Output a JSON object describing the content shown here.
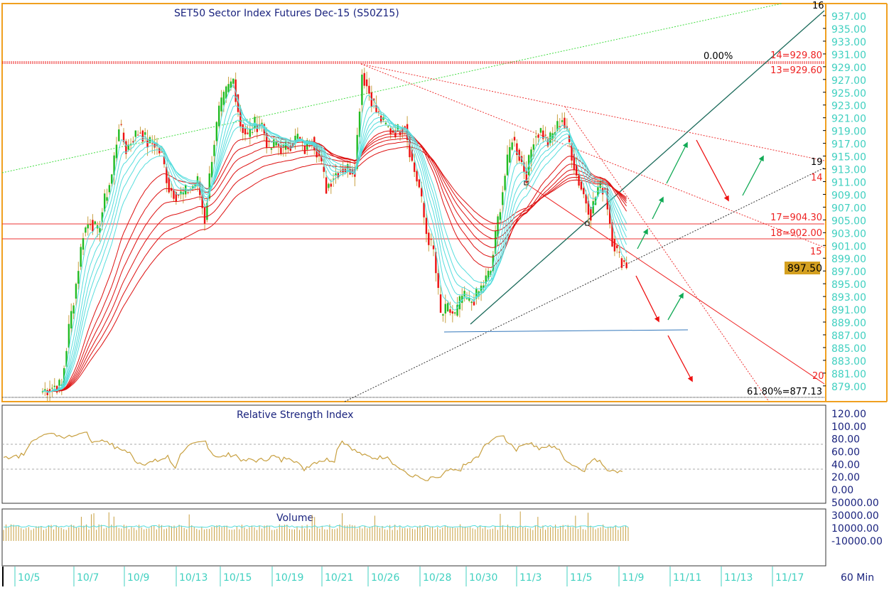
{
  "chart_data": {
    "type": "candlestick",
    "title": "SET50 Sector Index Futures Dec-15 (S50Z15)",
    "timeframe": "60 Min",
    "price_axis": {
      "min": 879,
      "max": 937,
      "ticks": [
        "937.00",
        "935.00",
        "933.00",
        "931.00",
        "929.00",
        "927.00",
        "925.00",
        "923.00",
        "921.00",
        "919.00",
        "917.00",
        "915.00",
        "913.00",
        "911.00",
        "909.00",
        "907.00",
        "905.00",
        "903.00",
        "901.00",
        "899.00",
        "897.00",
        "895.00",
        "893.00",
        "891.00",
        "889.00",
        "887.00",
        "885.00",
        "883.00",
        "881.00",
        "879.00"
      ]
    },
    "last_price": "897.50",
    "x_ticks": [
      "10/5",
      "10/7",
      "10/9",
      "10/13",
      "10/15",
      "10/19",
      "10/21",
      "10/26",
      "10/28",
      "10/30",
      "11/3",
      "11/5",
      "11/9",
      "11/11",
      "11/13",
      "11/17"
    ],
    "closes": [
      878,
      878.5,
      879,
      879,
      888,
      895,
      903,
      905,
      903,
      908,
      912,
      920,
      916,
      918,
      919,
      917,
      917,
      915,
      910,
      909,
      909,
      910,
      911,
      905,
      915,
      922,
      925,
      927,
      920,
      918,
      920,
      920,
      916,
      917,
      916,
      917,
      918,
      916,
      918,
      915,
      910,
      912,
      913,
      913,
      913,
      928,
      925,
      922,
      920,
      919,
      919,
      920,
      914,
      910,
      903,
      900,
      890,
      891,
      890,
      893,
      892,
      893,
      895,
      897,
      905,
      912,
      918,
      915,
      912,
      918,
      919,
      917,
      919,
      921,
      917,
      912,
      909,
      906,
      910,
      910,
      902,
      899,
      898
    ],
    "levels": [
      {
        "label": "0.00%",
        "value": 929.8
      },
      {
        "label": "14=929.80",
        "value": 929.8
      },
      {
        "label": "13=929.60",
        "value": 929.6
      },
      {
        "label": "17=904.30",
        "value": 904.3
      },
      {
        "label": "18=902.00",
        "value": 902.0
      },
      {
        "label": "61.80%=877.13",
        "value": 877.13
      }
    ],
    "line_tags": [
      "19",
      "14",
      "15",
      "20",
      "16"
    ],
    "rsi": {
      "title": "Relative Strength Index",
      "ticks": [
        "120.00",
        "100.00",
        "80.00",
        "60.00",
        "40.00",
        "20.00",
        "0.00"
      ],
      "min": -10,
      "max": 125
    },
    "volume": {
      "title": "Volume",
      "ticks": [
        "50000.00",
        "30000.00",
        "10000.00",
        "-10000.00"
      ],
      "min": -15000,
      "max": 65000
    }
  },
  "colors": {
    "up": "#22bb22",
    "down": "#ee1111",
    "fast_ma": "#55dddd",
    "slow_ma": "#dd1111",
    "rsi": "#c8a040",
    "axis_text": "#40d0c0",
    "frame": "#f0a020"
  }
}
